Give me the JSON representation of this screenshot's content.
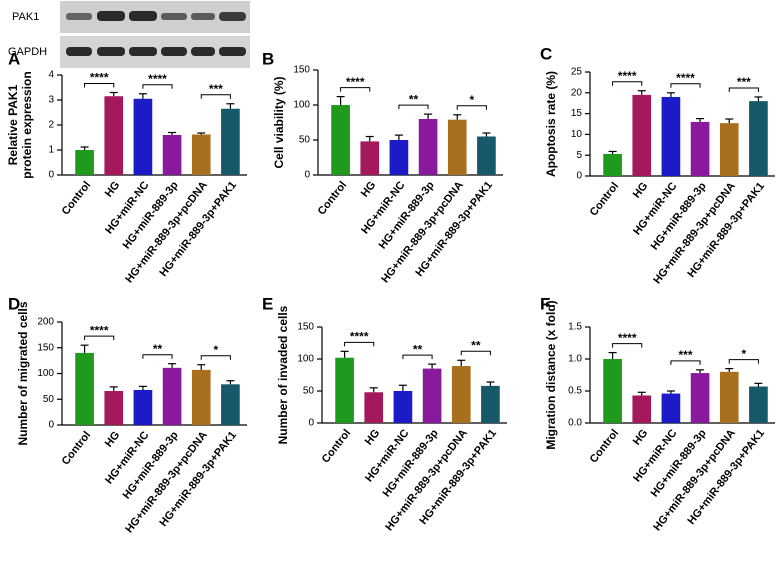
{
  "blot": {
    "labels": [
      "PAK1",
      "GAPDH"
    ]
  },
  "chart_data": [
    {
      "type": "bar",
      "label": "A",
      "ylabel": [
        "Relative PAK1",
        "protein expression"
      ],
      "categories": [
        "Control",
        "HG",
        "HG+miR-NC",
        "HG+miR-889-3p",
        "HG+miR-889-3p+pcDNA",
        "HG+miR-889-3p+PAK1"
      ],
      "values": [
        1.0,
        3.15,
        3.05,
        1.6,
        1.62,
        2.65
      ],
      "errors": [
        0.12,
        0.15,
        0.2,
        0.1,
        0.06,
        0.2
      ],
      "colors": [
        "#1f9a1f",
        "#a3195b",
        "#1b1bc8",
        "#8a1a9c",
        "#a8701e",
        "#17586a"
      ],
      "ylim": [
        0,
        4
      ],
      "yticks": [
        0,
        1,
        2,
        3,
        4
      ],
      "brackets": [
        {
          "from": "Control",
          "to": "HG",
          "label": "****"
        },
        {
          "from": "HG+miR-NC",
          "to": "HG+miR-889-3p",
          "label": "****"
        },
        {
          "from": "HG+miR-889-3p+pcDNA",
          "to": "HG+miR-889-3p+PAK1",
          "label": "***"
        }
      ]
    },
    {
      "type": "bar",
      "label": "B",
      "ylabel": "Cell viability (%)",
      "categories": [
        "Control",
        "HG",
        "HG+miR-NC",
        "HG+miR-889-3p",
        "HG+miR-889-3p+pcDNA",
        "HG+miR-889-3p+PAK1"
      ],
      "values": [
        100,
        48,
        50,
        80,
        79,
        55
      ],
      "errors": [
        12,
        7,
        7,
        7,
        7,
        5
      ],
      "colors": [
        "#1f9a1f",
        "#a3195b",
        "#1b1bc8",
        "#8a1a9c",
        "#a8701e",
        "#17586a"
      ],
      "ylim": [
        0,
        150
      ],
      "yticks": [
        0,
        50,
        100,
        150
      ],
      "brackets": [
        {
          "from": "Control",
          "to": "HG",
          "label": "****"
        },
        {
          "from": "HG+miR-NC",
          "to": "HG+miR-889-3p",
          "label": "**"
        },
        {
          "from": "HG+miR-889-3p+pcDNA",
          "to": "HG+miR-889-3p+PAK1",
          "label": "*"
        }
      ]
    },
    {
      "type": "bar",
      "label": "C",
      "ylabel": "Apoptosis rate (%)",
      "categories": [
        "Control",
        "HG",
        "HG+miR-NC",
        "HG+miR-889-3p",
        "HG+miR-889-3p+pcDNA",
        "HG+miR-889-3p+PAK1"
      ],
      "values": [
        5.3,
        19.5,
        19,
        13,
        12.7,
        18
      ],
      "errors": [
        0.6,
        1,
        1,
        0.8,
        1,
        1
      ],
      "colors": [
        "#1f9a1f",
        "#a3195b",
        "#1b1bc8",
        "#8a1a9c",
        "#a8701e",
        "#17586a"
      ],
      "ylim": [
        0,
        25
      ],
      "yticks": [
        0,
        5,
        10,
        15,
        20,
        25
      ],
      "brackets": [
        {
          "from": "Control",
          "to": "HG",
          "label": "****"
        },
        {
          "from": "HG+miR-NC",
          "to": "HG+miR-889-3p",
          "label": "****"
        },
        {
          "from": "HG+miR-889-3p+pcDNA",
          "to": "HG+miR-889-3p+PAK1",
          "label": "***"
        }
      ]
    },
    {
      "type": "bar",
      "label": "D",
      "ylabel": "Number of migrated cells",
      "categories": [
        "Control",
        "HG",
        "HG+miR-NC",
        "HG+miR-889-3p",
        "HG+miR-889-3p+pcDNA",
        "HG+miR-889-3p+PAK1"
      ],
      "values": [
        140,
        66,
        68,
        111,
        107,
        79
      ],
      "errors": [
        15,
        8,
        7,
        8,
        10,
        7
      ],
      "colors": [
        "#1f9a1f",
        "#a3195b",
        "#1b1bc8",
        "#8a1a9c",
        "#a8701e",
        "#17586a"
      ],
      "ylim": [
        0,
        200
      ],
      "yticks": [
        0,
        50,
        100,
        150,
        200
      ],
      "brackets": [
        {
          "from": "Control",
          "to": "HG",
          "label": "****"
        },
        {
          "from": "HG+miR-NC",
          "to": "HG+miR-889-3p",
          "label": "**"
        },
        {
          "from": "HG+miR-889-3p+pcDNA",
          "to": "HG+miR-889-3p+PAK1",
          "label": "*"
        }
      ]
    },
    {
      "type": "bar",
      "label": "E",
      "ylabel": "Number of invaded cells",
      "categories": [
        "Control",
        "HG",
        "HG+miR-NC",
        "HG+miR-889-3p",
        "HG+miR-889-3p+pcDNA",
        "HG+miR-889-3p+PAK1"
      ],
      "values": [
        102,
        48,
        50,
        85,
        89,
        58
      ],
      "errors": [
        10,
        7,
        9,
        7,
        9,
        6
      ],
      "colors": [
        "#1f9a1f",
        "#a3195b",
        "#1b1bc8",
        "#8a1a9c",
        "#a8701e",
        "#17586a"
      ],
      "ylim": [
        0,
        150
      ],
      "yticks": [
        0,
        50,
        100,
        150
      ],
      "brackets": [
        {
          "from": "Control",
          "to": "HG",
          "label": "****"
        },
        {
          "from": "HG+miR-NC",
          "to": "HG+miR-889-3p",
          "label": "**"
        },
        {
          "from": "HG+miR-889-3p+pcDNA",
          "to": "HG+miR-889-3p+PAK1",
          "label": "**"
        }
      ]
    },
    {
      "type": "bar",
      "label": "F",
      "ylabel": "Migration distance (x fold)",
      "categories": [
        "Control",
        "HG",
        "HG+miR-NC",
        "HG+miR-889-3p",
        "HG+miR-889-3p+pcDNA",
        "HG+miR-889-3p+PAK1"
      ],
      "values": [
        1.0,
        0.43,
        0.46,
        0.78,
        0.8,
        0.57
      ],
      "errors": [
        0.1,
        0.05,
        0.04,
        0.05,
        0.05,
        0.05
      ],
      "colors": [
        "#1f9a1f",
        "#a3195b",
        "#1b1bc8",
        "#8a1a9c",
        "#a8701e",
        "#17586a"
      ],
      "ylim": [
        0,
        1.5
      ],
      "yticks": [
        {
          "value": 0,
          "label": "0.0"
        },
        0.5,
        {
          "value": 1,
          "label": "1.0"
        },
        1.5
      ],
      "brackets": [
        {
          "from": "Control",
          "to": "HG",
          "label": "****"
        },
        {
          "from": "HG+miR-NC",
          "to": "HG+miR-889-3p",
          "label": "***"
        },
        {
          "from": "HG+miR-889-3p+pcDNA",
          "to": "HG+miR-889-3p+PAK1",
          "label": "*"
        }
      ]
    }
  ]
}
